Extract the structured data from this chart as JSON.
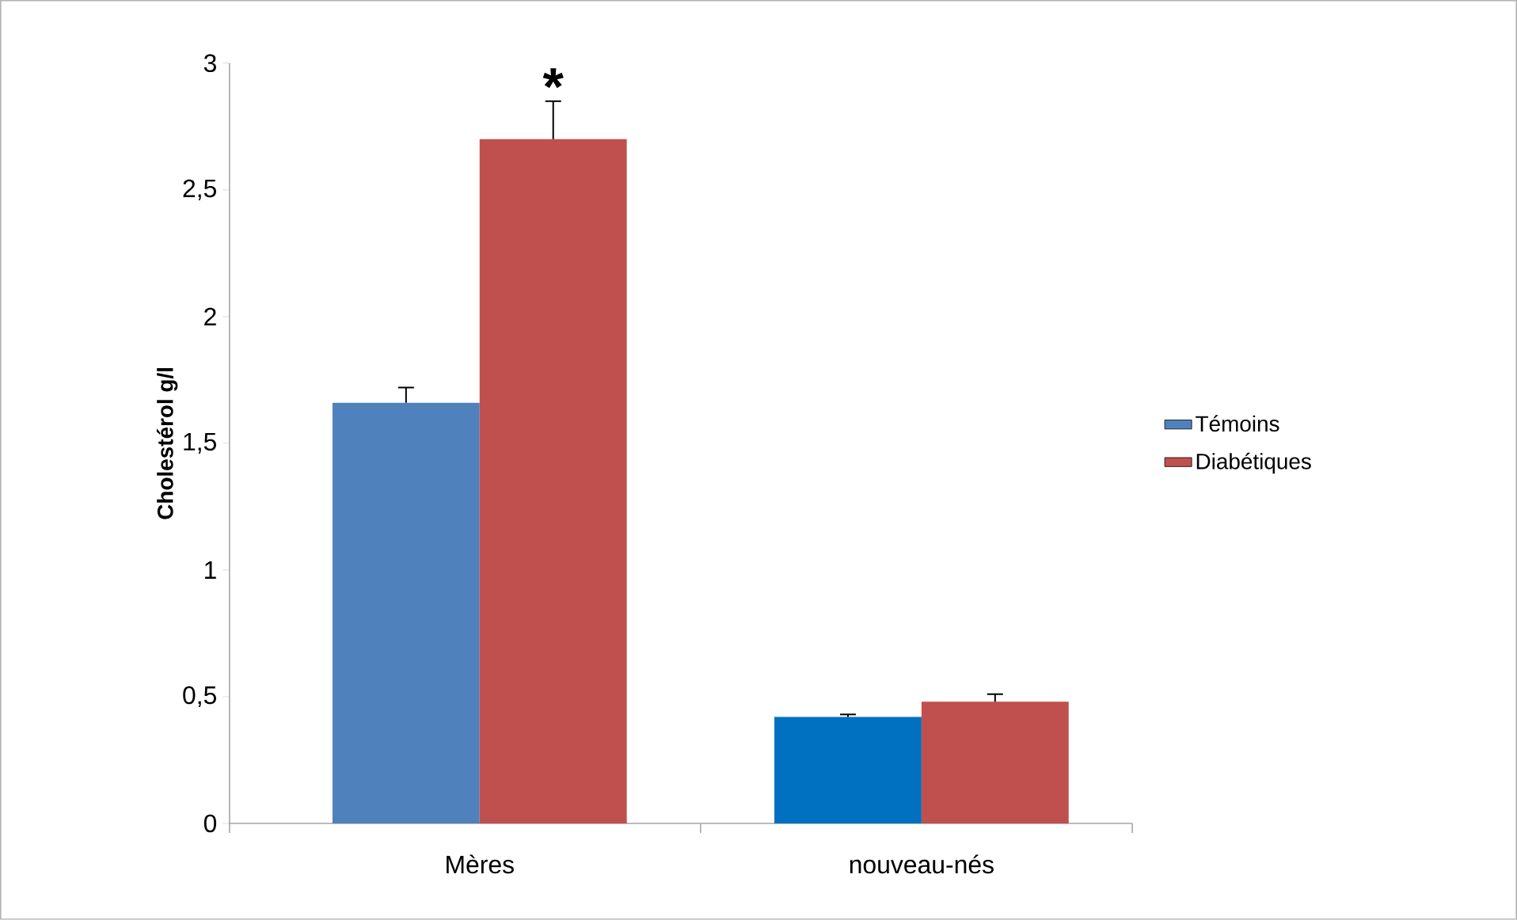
{
  "chart_data": {
    "type": "bar",
    "ylabel": "Cholestérol g/l",
    "categories": [
      "Mères",
      "nouveau-nés"
    ],
    "series": [
      {
        "name": "Témoins",
        "color": "#4f81bd",
        "colors": [
          "#4f81bd",
          "#0070c0"
        ],
        "values": [
          1.66,
          0.42
        ],
        "errors": [
          0.06,
          0.01
        ]
      },
      {
        "name": "Diabétiques",
        "color": "#c0504d",
        "colors": [
          "#c0504d",
          "#c0504d"
        ],
        "values": [
          2.7,
          0.48
        ],
        "errors": [
          0.15,
          0.03
        ]
      }
    ],
    "ylim": [
      0,
      3
    ],
    "yticks": [
      {
        "value": 0,
        "label": "0"
      },
      {
        "value": 0.5,
        "label": "0,5"
      },
      {
        "value": 1,
        "label": "1"
      },
      {
        "value": 1.5,
        "label": "1,5"
      },
      {
        "value": 2,
        "label": "2"
      },
      {
        "value": 2.5,
        "label": "2,5"
      },
      {
        "value": 3,
        "label": "3"
      }
    ],
    "annotations": [
      "*"
    ],
    "legend": "right",
    "grid": false
  }
}
